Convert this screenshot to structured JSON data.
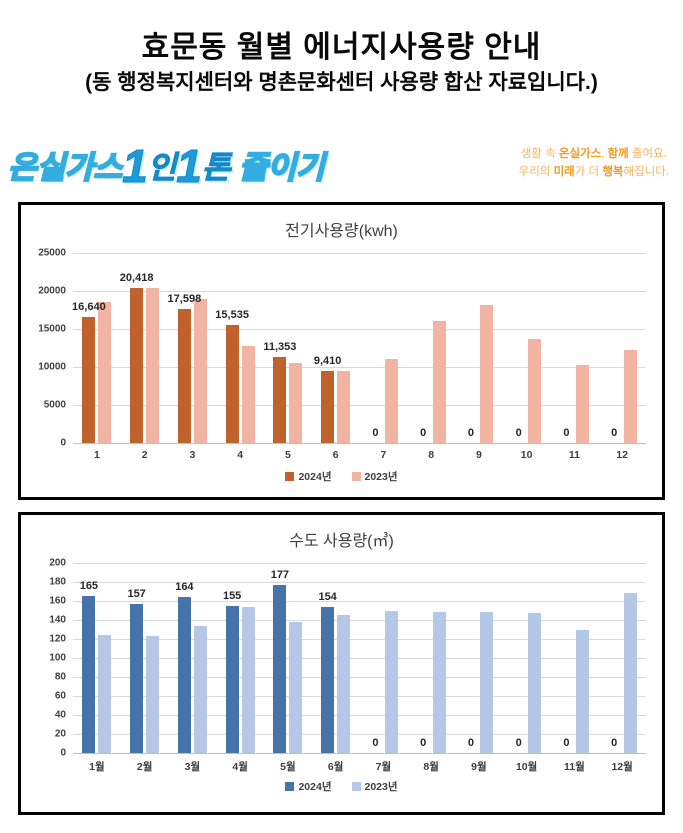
{
  "page": {
    "title": "효문동 월별 에너지사용량 안내",
    "subtitle": "(동 행정복지센터와 명촌문화센터 사용량 합산 자료입니다.)"
  },
  "banner": {
    "logo_parts": [
      {
        "text": "온실가스",
        "style": "outline"
      },
      {
        "text": "1",
        "style": "big"
      },
      {
        "text": "인",
        "style": "solid"
      },
      {
        "text": "1",
        "style": "big"
      },
      {
        "text": "톤 ",
        "style": "solid"
      },
      {
        "text": "줄이기",
        "style": "outline"
      }
    ],
    "logo_color": "#1b9cd8",
    "slogan_color": "#f8b25c",
    "slogan_lines": [
      [
        {
          "text": "생활 속 ",
          "bold": false
        },
        {
          "text": "온실가스",
          "bold": true
        },
        {
          "text": ", ",
          "bold": false
        },
        {
          "text": "함께",
          "bold": true
        },
        {
          "text": " 줄여요.",
          "bold": false
        }
      ],
      [
        {
          "text": "우리의 ",
          "bold": false
        },
        {
          "text": "미래",
          "bold": true
        },
        {
          "text": "가 더 ",
          "bold": false
        },
        {
          "text": "행복",
          "bold": true
        },
        {
          "text": "해집니다.",
          "bold": false
        }
      ]
    ]
  },
  "chart_data": [
    {
      "type": "bar",
      "title": "전기사용량(kwh)",
      "categories": [
        "1",
        "2",
        "3",
        "4",
        "5",
        "6",
        "7",
        "8",
        "9",
        "10",
        "11",
        "12"
      ],
      "series": [
        {
          "name": "2024년",
          "color": "#c0622b",
          "values": [
            16640,
            20418,
            17598,
            15535,
            11353,
            9410,
            0,
            0,
            0,
            0,
            0,
            0
          ],
          "data_labels": [
            "16,640",
            "20,418",
            "17,598",
            "15,535",
            "11,353",
            "9,410",
            "0",
            "0",
            "0",
            "0",
            "0",
            "0"
          ]
        },
        {
          "name": "2023년",
          "color": "#f2b4a2",
          "values": [
            18500,
            20400,
            18900,
            12700,
            10550,
            9500,
            11100,
            16100,
            18100,
            13700,
            10200,
            12300
          ]
        }
      ],
      "ylim": [
        0,
        25000
      ],
      "ytick_step": 5000,
      "yticks": [
        "0",
        "5000",
        "10000",
        "15000",
        "20000",
        "25000"
      ],
      "grid": true,
      "legend_position": "bottom"
    },
    {
      "type": "bar",
      "title": "수도 사용량(㎥)",
      "categories": [
        "1월",
        "2월",
        "3월",
        "4월",
        "5월",
        "6월",
        "7월",
        "8월",
        "9월",
        "10월",
        "11월",
        "12월"
      ],
      "series": [
        {
          "name": "2024년",
          "color": "#4674a8",
          "values": [
            165,
            157,
            164,
            155,
            177,
            154,
            0,
            0,
            0,
            0,
            0,
            0
          ],
          "data_labels": [
            "165",
            "157",
            "164",
            "155",
            "177",
            "154",
            "0",
            "0",
            "0",
            "0",
            "0",
            "0"
          ]
        },
        {
          "name": "2023년",
          "color": "#b4c7e7",
          "values": [
            124,
            123,
            134,
            154,
            138,
            145,
            150,
            148,
            148,
            147,
            130,
            168
          ]
        }
      ],
      "ylim": [
        0,
        200
      ],
      "ytick_step": 20,
      "yticks": [
        "0",
        "20",
        "40",
        "60",
        "80",
        "100",
        "120",
        "140",
        "160",
        "180",
        "200"
      ],
      "grid": true,
      "legend_position": "bottom"
    }
  ]
}
